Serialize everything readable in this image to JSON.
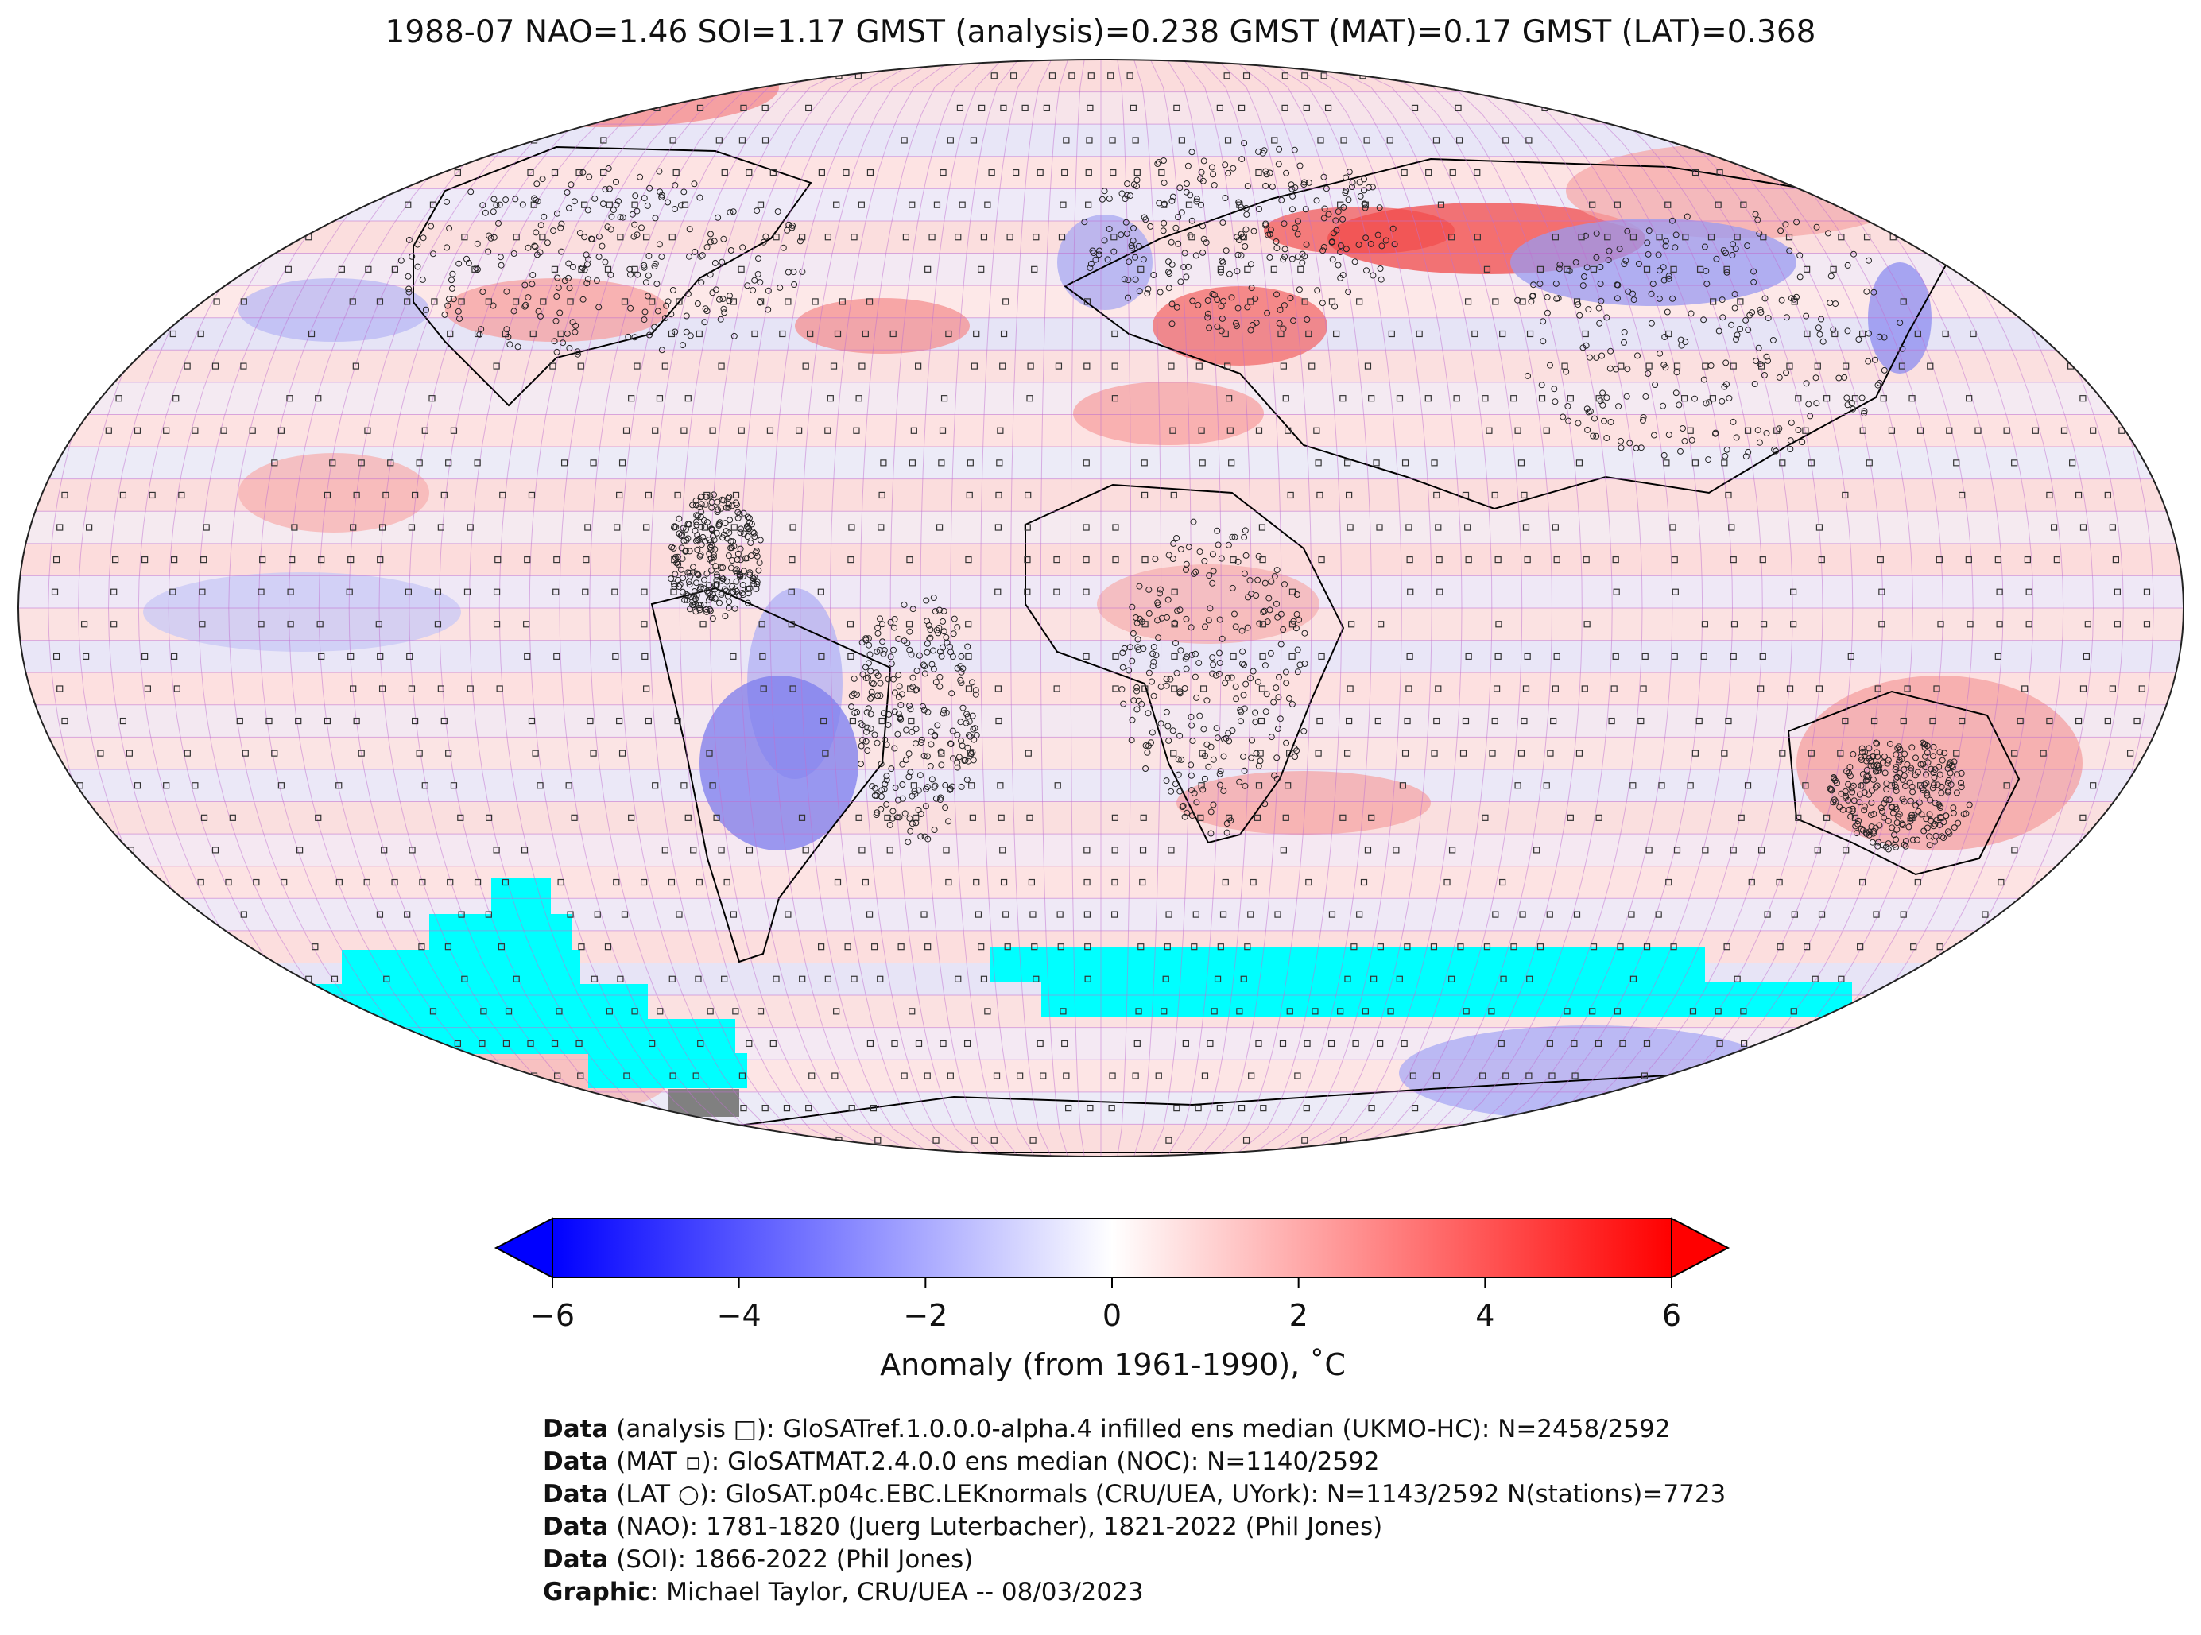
{
  "title": "1988-07 NAO=1.46 SOI=1.17 GMST (analysis)=0.238 GMST (MAT)=0.17 GMST (LAT)=0.368",
  "colorbar": {
    "ticks": [
      "−6",
      "−4",
      "−2",
      "0",
      "2",
      "4",
      "6"
    ],
    "tick_values": [
      -6,
      -4,
      -2,
      0,
      2,
      4,
      6
    ],
    "label": "Anomaly (from 1961-1990), ˚C",
    "colors": {
      "min": "#0000ff",
      "mid": "#ffffff",
      "max": "#ff0000"
    },
    "extend": "both"
  },
  "map": {
    "projection": "Robinson",
    "land_outline_color": "#000000",
    "grid_color": "#c070d0",
    "missing_color": "#00ffff",
    "nodata_color": "#808080"
  },
  "credits": [
    {
      "bold": "Data",
      "rest": " (analysis □): GloSATref.1.0.0.0-alpha.4 infilled ens median (UKMO-HC): N=2458/2592"
    },
    {
      "bold": "Data",
      "rest": " (MAT ▫): GloSATMAT.2.4.0.0 ens median (NOC): N=1140/2592"
    },
    {
      "bold": "Data",
      "rest": " (LAT ○): GloSAT.p04c.EBC.LEKnormals (CRU/UEA, UYork): N=1143/2592 N(stations)=7723"
    },
    {
      "bold": "Data",
      "rest": " (NAO): 1781-1820 (Juerg Luterbacher), 1821-2022 (Phil Jones)"
    },
    {
      "bold": "Data",
      "rest": " (SOI): 1866-2022 (Phil Jones)"
    },
    {
      "bold": "Graphic",
      "rest": ": Michael Taylor, CRU/UEA -- 08/03/2023"
    }
  ]
}
